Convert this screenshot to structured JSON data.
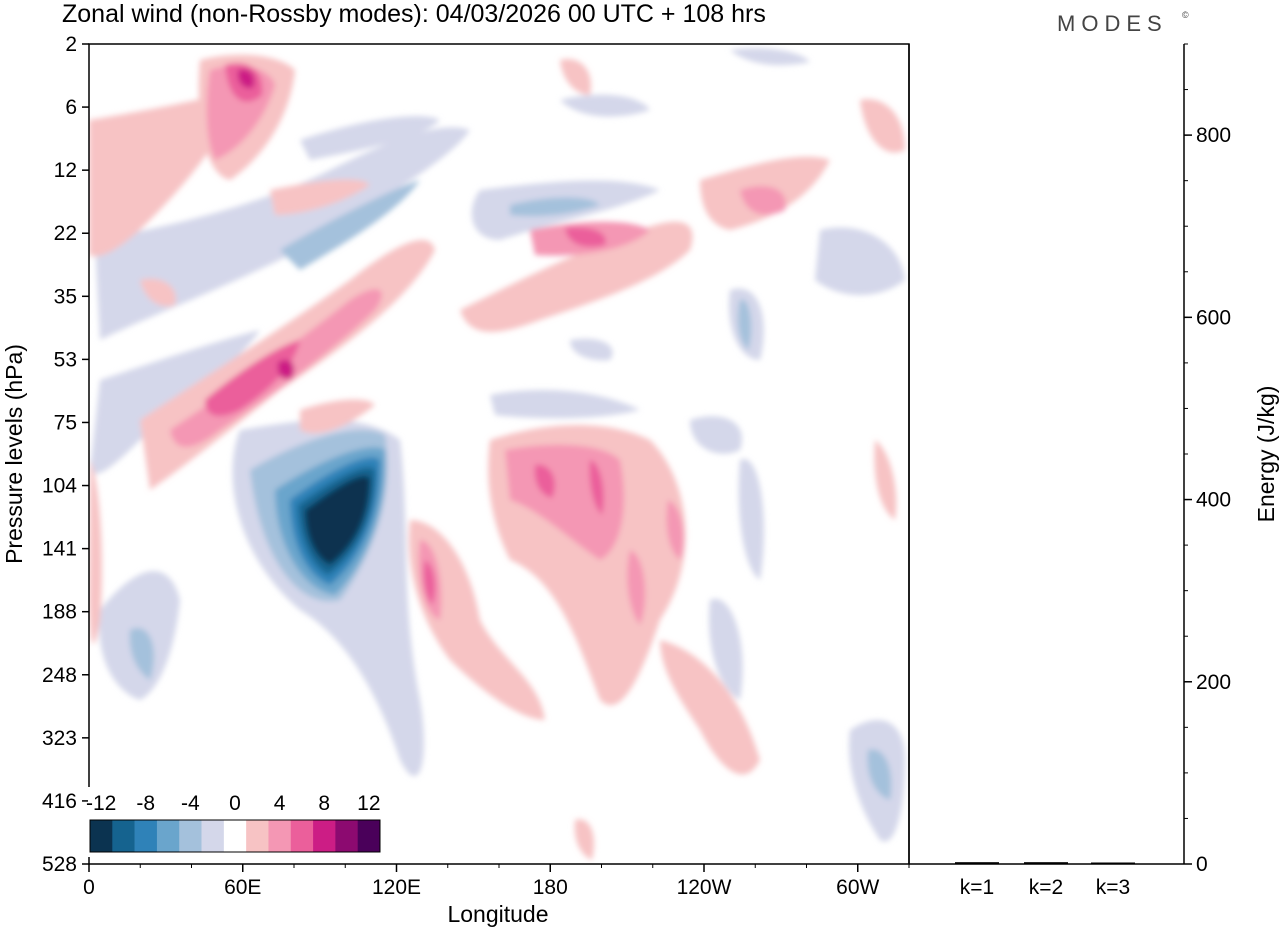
{
  "chart_data": {
    "type": "heatmap",
    "title": "Zonal wind (non-Rossby modes):  04/03/2026  00 UTC  + 108 hrs",
    "brand": "MODES",
    "brand_mark": "©",
    "xlabel": "Longitude",
    "ylabel": "Pressure levels (hPa)",
    "x_tick_labels": [
      "0",
      "60E",
      "120E",
      "180",
      "120W",
      "60W"
    ],
    "x_tick_values_deg": [
      0,
      60,
      120,
      180,
      240,
      300
    ],
    "xlim_deg": [
      0,
      320
    ],
    "y_tick_labels": [
      "2",
      "6",
      "12",
      "22",
      "35",
      "53",
      "75",
      "104",
      "141",
      "188",
      "248",
      "323",
      "416",
      "528"
    ],
    "colorbar": {
      "labels": [
        "-12",
        "-8",
        "-4",
        "0",
        "4",
        "8",
        "12"
      ],
      "levels": [
        -14,
        -12,
        -10,
        -8,
        -6,
        -4,
        -2,
        2,
        4,
        6,
        8,
        10,
        12,
        14
      ],
      "colors": [
        "#0b3350",
        "#15638f",
        "#2f82b8",
        "#6aa5cc",
        "#a4c1dc",
        "#d4d7ea",
        "#ffffff",
        "#f7c3c4",
        "#f497b4",
        "#eb5f9b",
        "#cc1d85",
        "#8c0a70",
        "#4a005a"
      ]
    },
    "features": [
      {
        "name": "negative-core",
        "lon": 103,
        "p_index": 8.0,
        "value": -13
      },
      {
        "name": "positive-band-lower-strat",
        "lon": 58,
        "p_index": 6.0,
        "value": 8
      },
      {
        "name": "positive-top-left",
        "lon": 57,
        "p_index": 0.6,
        "value": 9
      },
      {
        "name": "positive-mid-pacific",
        "lon": 208,
        "p_index": 7.5,
        "value": 7
      },
      {
        "name": "positive-ridge-22hPa",
        "lon": 205,
        "p_index": 3.0,
        "value": 6
      }
    ],
    "energy_panel": {
      "ylabel": "Energy (J/kg)",
      "ylim": [
        0,
        900
      ],
      "y_tick_labels": [
        "0",
        "200",
        "400",
        "600",
        "800"
      ],
      "y_tick_values": [
        0,
        200,
        400,
        600,
        800
      ],
      "categories": [
        "k=1",
        "k=2",
        "k=3"
      ],
      "values": [
        2,
        2,
        1
      ]
    }
  }
}
